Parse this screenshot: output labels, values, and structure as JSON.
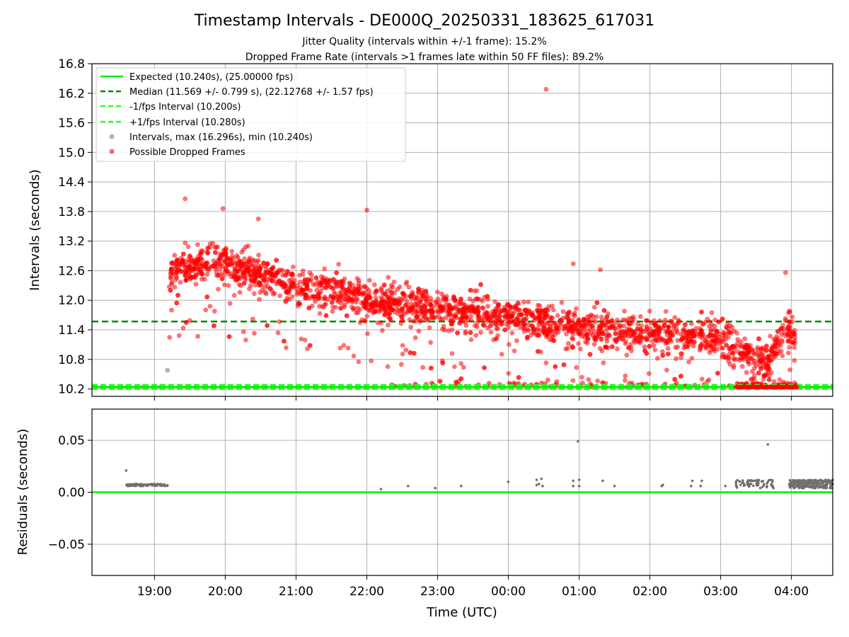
{
  "figure": {
    "title": "Timestamp Intervals - DE000Q_20250331_183625_617031",
    "subtitle_1": "Jitter Quality (intervals within +/-1 frame): 15.2%",
    "subtitle_2": "Dropped Frame Rate (intervals >1 frames late within 50 FF files): 89.2%"
  },
  "chart_data": [
    {
      "type": "scatter",
      "panel": "intervals",
      "ylabel": "Intervals (seconds)",
      "ylim": [
        10.05,
        16.8
      ],
      "yticks": [
        "10.2",
        "10.8",
        "11.4",
        "12.0",
        "12.6",
        "13.2",
        "13.8",
        "14.4",
        "15.0",
        "15.6",
        "16.2",
        "16.8"
      ],
      "ytick_values": [
        10.2,
        10.8,
        11.4,
        12.0,
        12.6,
        13.2,
        13.8,
        14.4,
        15.0,
        15.6,
        16.2,
        16.8
      ],
      "xlim": [
        "18:07",
        "04:35"
      ],
      "grid": true,
      "legend_position": "upper-left",
      "colors": {
        "expected": "#00ee00",
        "median": "#008800",
        "fps_bounds": "#22ff22",
        "intervals": "#808080",
        "dropped": "#ff0000"
      },
      "series": [
        {
          "name": "Expected (10.240s), (25.00000 fps)",
          "kind": "hline",
          "value": 10.24,
          "style": "solid"
        },
        {
          "name": "Median (11.569 +/- 0.799 s), (22.12768 +/- 1.57 fps)",
          "kind": "hline",
          "value": 11.569,
          "style": "dashed"
        },
        {
          "name": "-1/fps Interval (10.200s)",
          "kind": "hline",
          "value": 10.2,
          "style": "dashed"
        },
        {
          "name": "+1/fps Interval (10.280s)",
          "kind": "hline",
          "value": 10.28,
          "style": "dashed"
        },
        {
          "name": "Intervals, max (16.296s), min (10.240s)",
          "kind": "scatter",
          "note": "grey points, mostly at 10.24 s",
          "samples": [
            [
              "18:37",
              10.24
            ],
            [
              "18:50",
              10.24
            ],
            [
              "19:05",
              10.24
            ],
            [
              "19:11",
              10.58
            ],
            [
              "22:40",
              10.24
            ],
            [
              "01:40",
              10.24
            ],
            [
              "04:20",
              10.24
            ],
            [
              "04:30",
              10.24
            ]
          ]
        },
        {
          "name": "Possible Dropped Frames",
          "kind": "scatter",
          "note": "dense red cloud; values read approximately from the axes",
          "trend": [
            [
              "19:12",
              12.6
            ],
            [
              "19:30",
              12.75
            ],
            [
              "20:00",
              12.7
            ],
            [
              "20:30",
              12.5
            ],
            [
              "21:00",
              12.3
            ],
            [
              "21:30",
              12.2
            ],
            [
              "22:00",
              12.0
            ],
            [
              "22:30",
              11.9
            ],
            [
              "23:00",
              11.85
            ],
            [
              "23:30",
              11.75
            ],
            [
              "00:00",
              11.6
            ],
            [
              "00:30",
              11.55
            ],
            [
              "01:00",
              11.45
            ],
            [
              "01:30",
              11.4
            ],
            [
              "02:00",
              11.35
            ],
            [
              "02:30",
              11.3
            ],
            [
              "03:00",
              11.25
            ],
            [
              "03:15",
              11.0
            ],
            [
              "03:30",
              10.85
            ],
            [
              "03:40",
              10.7
            ],
            [
              "03:55",
              11.4
            ],
            [
              "04:03",
              11.2
            ]
          ],
          "notable": [
            [
              "00:32",
              16.28
            ],
            [
              "19:26",
              14.06
            ],
            [
              "19:58",
              13.86
            ],
            [
              "22:00",
              13.83
            ],
            [
              "20:28",
              13.65
            ],
            [
              "03:55",
              12.56
            ],
            [
              "00:55",
              12.74
            ],
            [
              "01:18",
              12.62
            ]
          ]
        }
      ]
    },
    {
      "type": "scatter",
      "panel": "residuals",
      "ylabel": "Residuals (seconds)",
      "xlabel": "Time (UTC)",
      "ylim": [
        -0.08,
        0.08
      ],
      "yticks": [
        "−0.05",
        "0.00",
        "0.05"
      ],
      "ytick_values": [
        -0.05,
        0.0,
        0.05
      ],
      "xticks": [
        "19:00",
        "20:00",
        "21:00",
        "22:00",
        "23:00",
        "00:00",
        "01:00",
        "02:00",
        "03:00",
        "04:00"
      ],
      "xlim": [
        "18:07",
        "04:35"
      ],
      "grid": true,
      "series": [
        {
          "kind": "hline",
          "value": 0.0,
          "color": "#00ee00"
        },
        {
          "kind": "scatter",
          "color": "#707070",
          "points": [
            [
              "18:36",
              0.021
            ],
            [
              "22:12",
              0.003
            ],
            [
              "22:35",
              0.006
            ],
            [
              "22:58",
              0.004
            ],
            [
              "23:20",
              0.006
            ],
            [
              "00:00",
              0.01
            ],
            [
              "00:24",
              0.007
            ],
            [
              "00:24",
              0.012
            ],
            [
              "00:26",
              0.008
            ],
            [
              "00:28",
              0.013
            ],
            [
              "00:29",
              0.006
            ],
            [
              "00:55",
              0.006
            ],
            [
              "00:55",
              0.011
            ],
            [
              "00:59",
              0.049
            ],
            [
              "01:00",
              0.012
            ],
            [
              "01:00",
              0.006
            ],
            [
              "01:20",
              0.011
            ],
            [
              "01:30",
              0.006
            ],
            [
              "02:10",
              0.006
            ],
            [
              "02:11",
              0.007
            ],
            [
              "02:35",
              0.006
            ],
            [
              "02:36",
              0.011
            ],
            [
              "02:43",
              0.006
            ],
            [
              "02:44",
              0.011
            ],
            [
              "03:04",
              0.006
            ],
            [
              "03:40",
              0.046
            ],
            [
              "03:42",
              0.012
            ],
            [
              "03:43",
              0.008
            ]
          ],
          "clusters": [
            {
              "from": "18:36",
              "to": "19:12",
              "value": 0.007
            },
            {
              "from": "03:13",
              "to": "03:45",
              "value": 0.008
            },
            {
              "from": "03:58",
              "to": "04:35",
              "value": 0.008
            }
          ]
        }
      ]
    }
  ]
}
